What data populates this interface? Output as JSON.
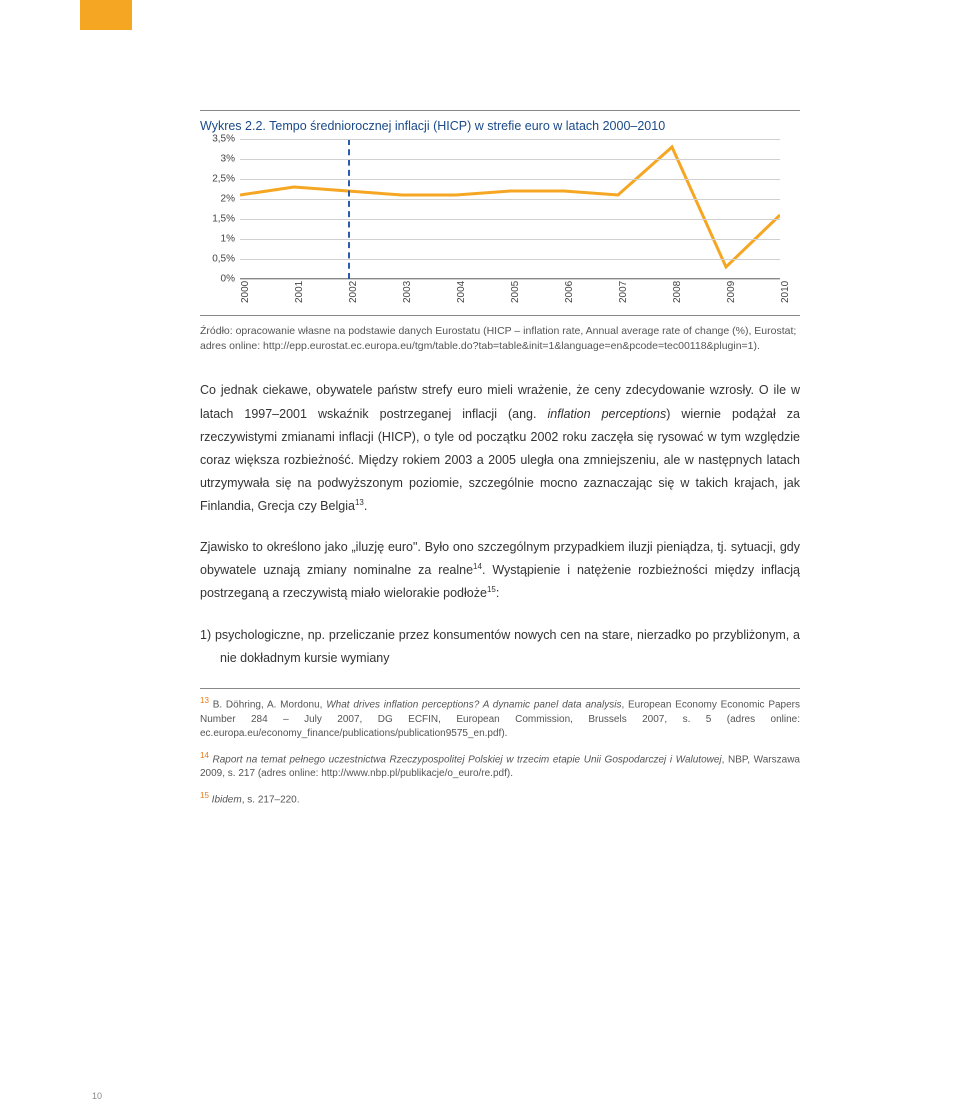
{
  "chart": {
    "title": "Wykres 2.2. Tempo średniorocznej inflacji (HICP) w strefie euro w latach 2000–2010",
    "type": "line",
    "x_labels": [
      "2000",
      "2001",
      "2002",
      "2003",
      "2004",
      "2005",
      "2006",
      "2007",
      "2008",
      "2009",
      "2010"
    ],
    "y_labels": [
      "0%",
      "0,5%",
      "1%",
      "1,5%",
      "2%",
      "2,5%",
      "3%",
      "3,5%"
    ],
    "ylim": [
      0,
      3.5
    ],
    "ytick_step": 0.5,
    "values": [
      2.1,
      2.3,
      2.2,
      2.1,
      2.1,
      2.2,
      2.2,
      2.1,
      3.3,
      0.3,
      1.6
    ],
    "line_color": "#f5a623",
    "line_width": 3,
    "marker_color": "#2a5caa",
    "marker_x_index": 2,
    "grid_color": "#d0d0d0",
    "axis_color": "#888888",
    "label_fontsize": 10
  },
  "source": "Źródło: opracowanie własne na podstawie danych Eurostatu (HICP – inflation rate, Annual average rate of change (%), Eurostat; adres online: http://epp.eurostat.ec.europa.eu/tgm/table.do?tab=table&init=1&language=en&pcode=tec00118&plugin=1).",
  "p1a": "Co jednak ciekawe, obywatele państw strefy euro mieli wrażenie, że ceny zdecydowanie wzrosły. O ile w latach 1997–2001 wskaźnik postrzeganej inflacji (ang. ",
  "p1i": "inflation perceptions",
  "p1b": ") wiernie podążał za rzeczywistymi zmianami inflacji (HICP), o tyle od początku 2002 roku zaczęła się rysować w tym względzie coraz większa rozbieżność. Między rokiem 2003 a 2005 uległa ona zmniejszeniu, ale w następnych latach utrzymywała się na podwyższonym poziomie, szczególnie mocno zaznaczając się w takich krajach, jak Finlandia, Grecja czy Belgia",
  "p1sup": "13",
  "p1c": ".",
  "p2a": "Zjawisko to określono jako „iluzję euro\". Było ono szczególnym przypadkiem iluzji pieniądza, tj. sytuacji, gdy obywatele uznają zmiany nominalne za realne",
  "p2sup1": "14",
  "p2b": ". Wystąpienie i natężenie rozbieżności między inflacją postrzeganą a rzeczywistą miało wielorakie podłoże",
  "p2sup2": "15",
  "p2c": ":",
  "list1_num": "1)",
  "list1": "psychologiczne, np. przeliczanie przez konsumentów nowych cen na stare, nierzadko po przybliżonym, a nie dokładnym kursie wymiany",
  "fn13_sup": "13",
  "fn13a": " B. Döhring, A. Mordonu, ",
  "fn13i": "What drives inflation perceptions? A dynamic panel data analysis",
  "fn13b": ", European Economy Economic Papers Number 284 – July 2007, DG ECFIN, European Commission, Brussels 2007, s. 5 (adres online: ec.europa.eu/economy_finance/publications/publication9575_en.pdf).",
  "fn14_sup": "14",
  "fn14i": " Raport na temat pełnego uczestnictwa Rzeczypospolitej Polskiej w trzecim etapie Unii Gospodarczej i Walutowej",
  "fn14b": ", NBP, Warszawa 2009, s. 217 (adres online: http://www.nbp.pl/publikacje/o_euro/re.pdf).",
  "fn15_sup": "15",
  "fn15i": " Ibidem",
  "fn15b": ", s. 217–220.",
  "page_number": "10"
}
